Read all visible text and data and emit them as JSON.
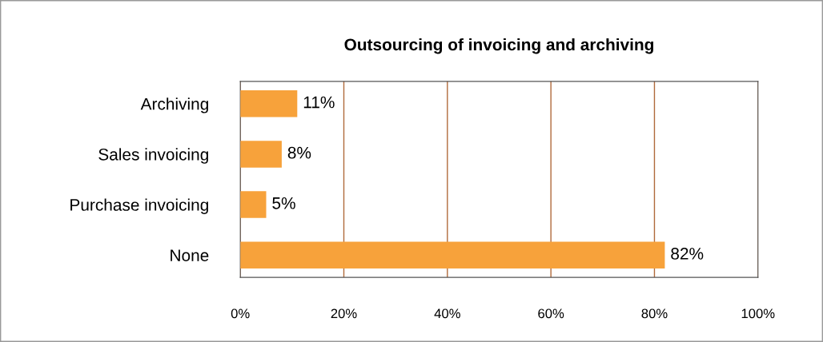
{
  "chart_data": {
    "type": "bar",
    "orientation": "horizontal",
    "title": "Outsourcing of invoicing and archiving",
    "categories": [
      "Archiving",
      "Sales invoicing",
      "Purchase invoicing",
      "None"
    ],
    "values": [
      11,
      8,
      5,
      82
    ],
    "value_labels": [
      "11%",
      "8%",
      "5%",
      "82%"
    ],
    "color": "#f7a23b",
    "xlim": [
      0,
      100
    ],
    "xticks": [
      {
        "value": 0,
        "label": "0%"
      },
      {
        "value": 20,
        "label": "20%"
      },
      {
        "value": 40,
        "label": "40%"
      },
      {
        "value": 60,
        "label": "60%"
      },
      {
        "value": 80,
        "label": "80%"
      },
      {
        "value": 100,
        "label": "100%"
      }
    ],
    "grid": "x"
  }
}
